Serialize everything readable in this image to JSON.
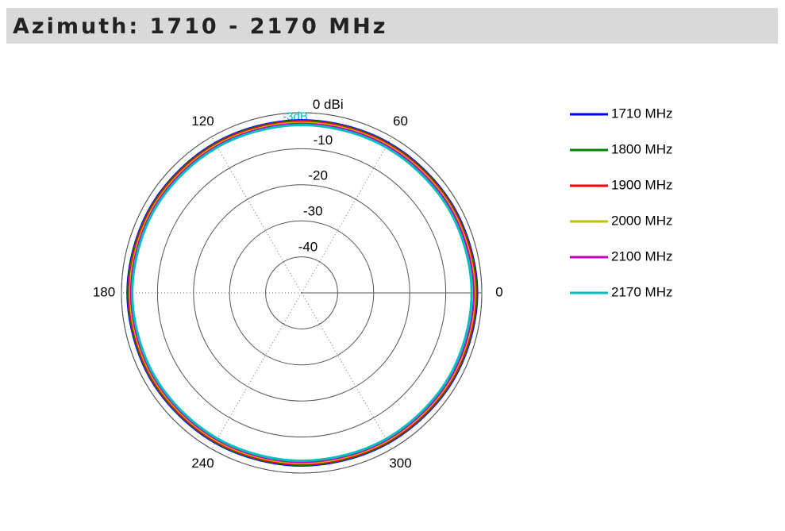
{
  "chart_data": {
    "type": "polar",
    "title": "Azimuth: 1710 - 2170 MHz",
    "theta": [
      0,
      30,
      60,
      90,
      120,
      150,
      180,
      210,
      240,
      270,
      300,
      330
    ],
    "series": [
      {
        "name": "1710 MHz",
        "color": "#0000ff",
        "values": [
          -1.2,
          -1.5,
          -1.8,
          -2.0,
          -1.9,
          -1.7,
          -1.6,
          -1.7,
          -1.9,
          -2.0,
          -1.8,
          -1.4
        ]
      },
      {
        "name": "1800 MHz",
        "color": "#008000",
        "values": [
          -1.4,
          -1.7,
          -2.0,
          -2.2,
          -2.1,
          -1.9,
          -1.8,
          -1.9,
          -2.1,
          -2.2,
          -2.0,
          -1.6
        ]
      },
      {
        "name": "1900 MHz",
        "color": "#ff0000",
        "values": [
          -1.6,
          -1.9,
          -2.2,
          -2.4,
          -2.3,
          -2.1,
          -2.0,
          -2.1,
          -2.3,
          -2.4,
          -2.2,
          -1.8
        ]
      },
      {
        "name": "2000 MHz",
        "color": "#bfbf00",
        "values": [
          -1.9,
          -2.2,
          -2.5,
          -2.7,
          -2.6,
          -2.4,
          -2.3,
          -2.4,
          -2.6,
          -2.7,
          -2.5,
          -2.1
        ]
      },
      {
        "name": "2100 MHz",
        "color": "#bf00bf",
        "values": [
          -2.2,
          -2.5,
          -2.8,
          -3.0,
          -2.9,
          -2.7,
          -2.6,
          -2.7,
          -2.9,
          -3.0,
          -2.8,
          -2.4
        ]
      },
      {
        "name": "2170 MHz",
        "color": "#00bfbf",
        "values": [
          -2.8,
          -3.0,
          -3.3,
          -3.4,
          -3.3,
          -3.1,
          -3.0,
          -3.1,
          -3.3,
          -3.4,
          -3.2,
          -2.9
        ]
      }
    ],
    "rlim": [
      -50,
      0
    ],
    "rticks": [
      -40,
      -30,
      -20,
      -10,
      {
        "value": 0,
        "label": "0 dBi"
      }
    ],
    "thetaticks": [
      0,
      60,
      120,
      180,
      240,
      300
    ],
    "annotation": {
      "text": "-3dB",
      "value": -3,
      "color": "#00bfbf"
    }
  }
}
